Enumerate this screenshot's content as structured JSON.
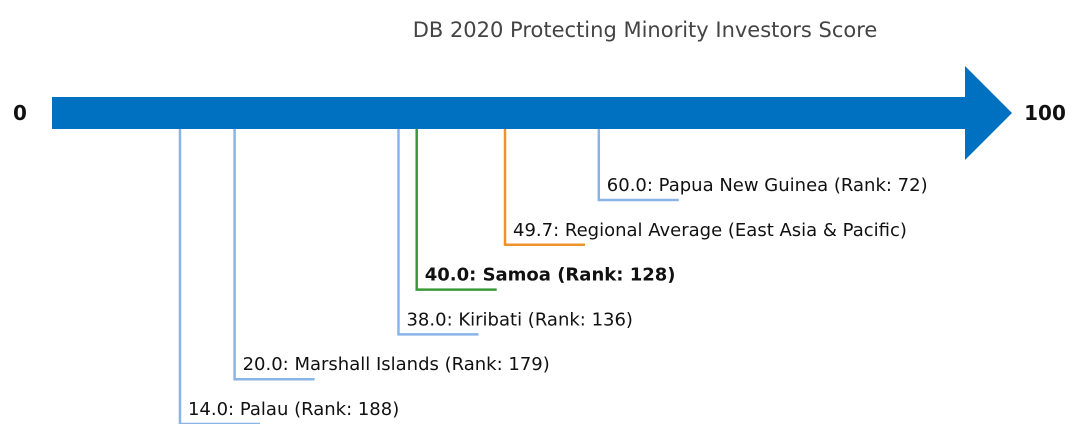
{
  "chart_data": {
    "type": "scale",
    "title": "DB 2020 Protecting Minority Investors Score",
    "xlim": [
      0,
      100
    ],
    "xticks": [
      0,
      100
    ],
    "axis_color": "#0070c0",
    "values": [
      14,
      20,
      38,
      40,
      49.7,
      60
    ],
    "value_labels": [
      "14.0: Palau (Rank: 188)",
      "20.0: Marshall Islands (Rank: 179)",
      "38.0: Kiribati (Rank: 136)",
      "40.0: Samoa (Rank: 128)",
      "49.7: Regional Average (East Asia & Pacific)",
      "60.0: Papua New Guinea (Rank: 72)"
    ],
    "colors": [
      "#8ab4e8",
      "#8ab4e8",
      "#8ab4e8",
      "#3a9a3a",
      "#f0922b",
      "#8ab4e8"
    ],
    "bold_index": 3
  }
}
